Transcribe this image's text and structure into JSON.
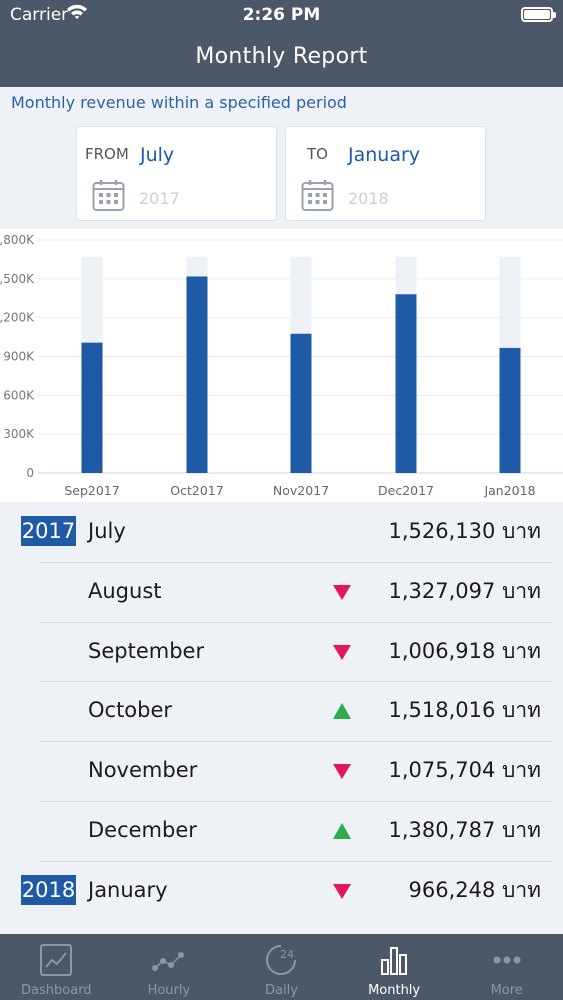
{
  "status": {
    "carrier": "Carrier",
    "time": "2:26 PM"
  },
  "header": {
    "title": "Monthly Report"
  },
  "subtitle": "Monthly revenue within a specified period",
  "range": {
    "from": {
      "label": "FROM",
      "month": "July",
      "year": "2017"
    },
    "to": {
      "label": "TO",
      "month": "January",
      "year": "2018"
    }
  },
  "chart_data": {
    "type": "bar",
    "categories": [
      "Sep2017",
      "Oct2017",
      "Nov2017",
      "Dec2017",
      "Jan2018"
    ],
    "values": [
      1006918,
      1518016,
      1075704,
      1380787,
      966248
    ],
    "yticks": [
      "0",
      "300K",
      "600K",
      "900K",
      "1,200K",
      "1,500K",
      "1,800K"
    ],
    "ylim": [
      0,
      1800000
    ],
    "background_max": 1670000,
    "colors": {
      "bar": "#1f5aa6",
      "track": "#eef2f6",
      "grid": "#e9edf1"
    }
  },
  "rows": [
    {
      "year": "2017",
      "month": "July",
      "trend": "",
      "amount": "1,526,130 บาท"
    },
    {
      "year": "",
      "month": "August",
      "trend": "down",
      "amount": "1,327,097 บาท"
    },
    {
      "year": "",
      "month": "September",
      "trend": "down",
      "amount": "1,006,918 บาท"
    },
    {
      "year": "",
      "month": "October",
      "trend": "up",
      "amount": "1,518,016 บาท"
    },
    {
      "year": "",
      "month": "November",
      "trend": "down",
      "amount": "1,075,704 บาท"
    },
    {
      "year": "",
      "month": "December",
      "trend": "up",
      "amount": "1,380,787 บาท"
    },
    {
      "year": "2018",
      "month": "January",
      "trend": "down",
      "amount": "966,248 บาท"
    }
  ],
  "trend_colors": {
    "up": "#2faa4c",
    "down": "#e0175f"
  },
  "tabs": [
    {
      "label": "Dashboard",
      "icon": "dashboard-chart-icon"
    },
    {
      "label": "Hourly",
      "icon": "hourly-dots-icon"
    },
    {
      "label": "Daily",
      "icon": "daily-24-icon"
    },
    {
      "label": "Monthly",
      "icon": "monthly-bars-icon",
      "active": true
    },
    {
      "label": "More",
      "icon": "more-dots-icon"
    }
  ]
}
